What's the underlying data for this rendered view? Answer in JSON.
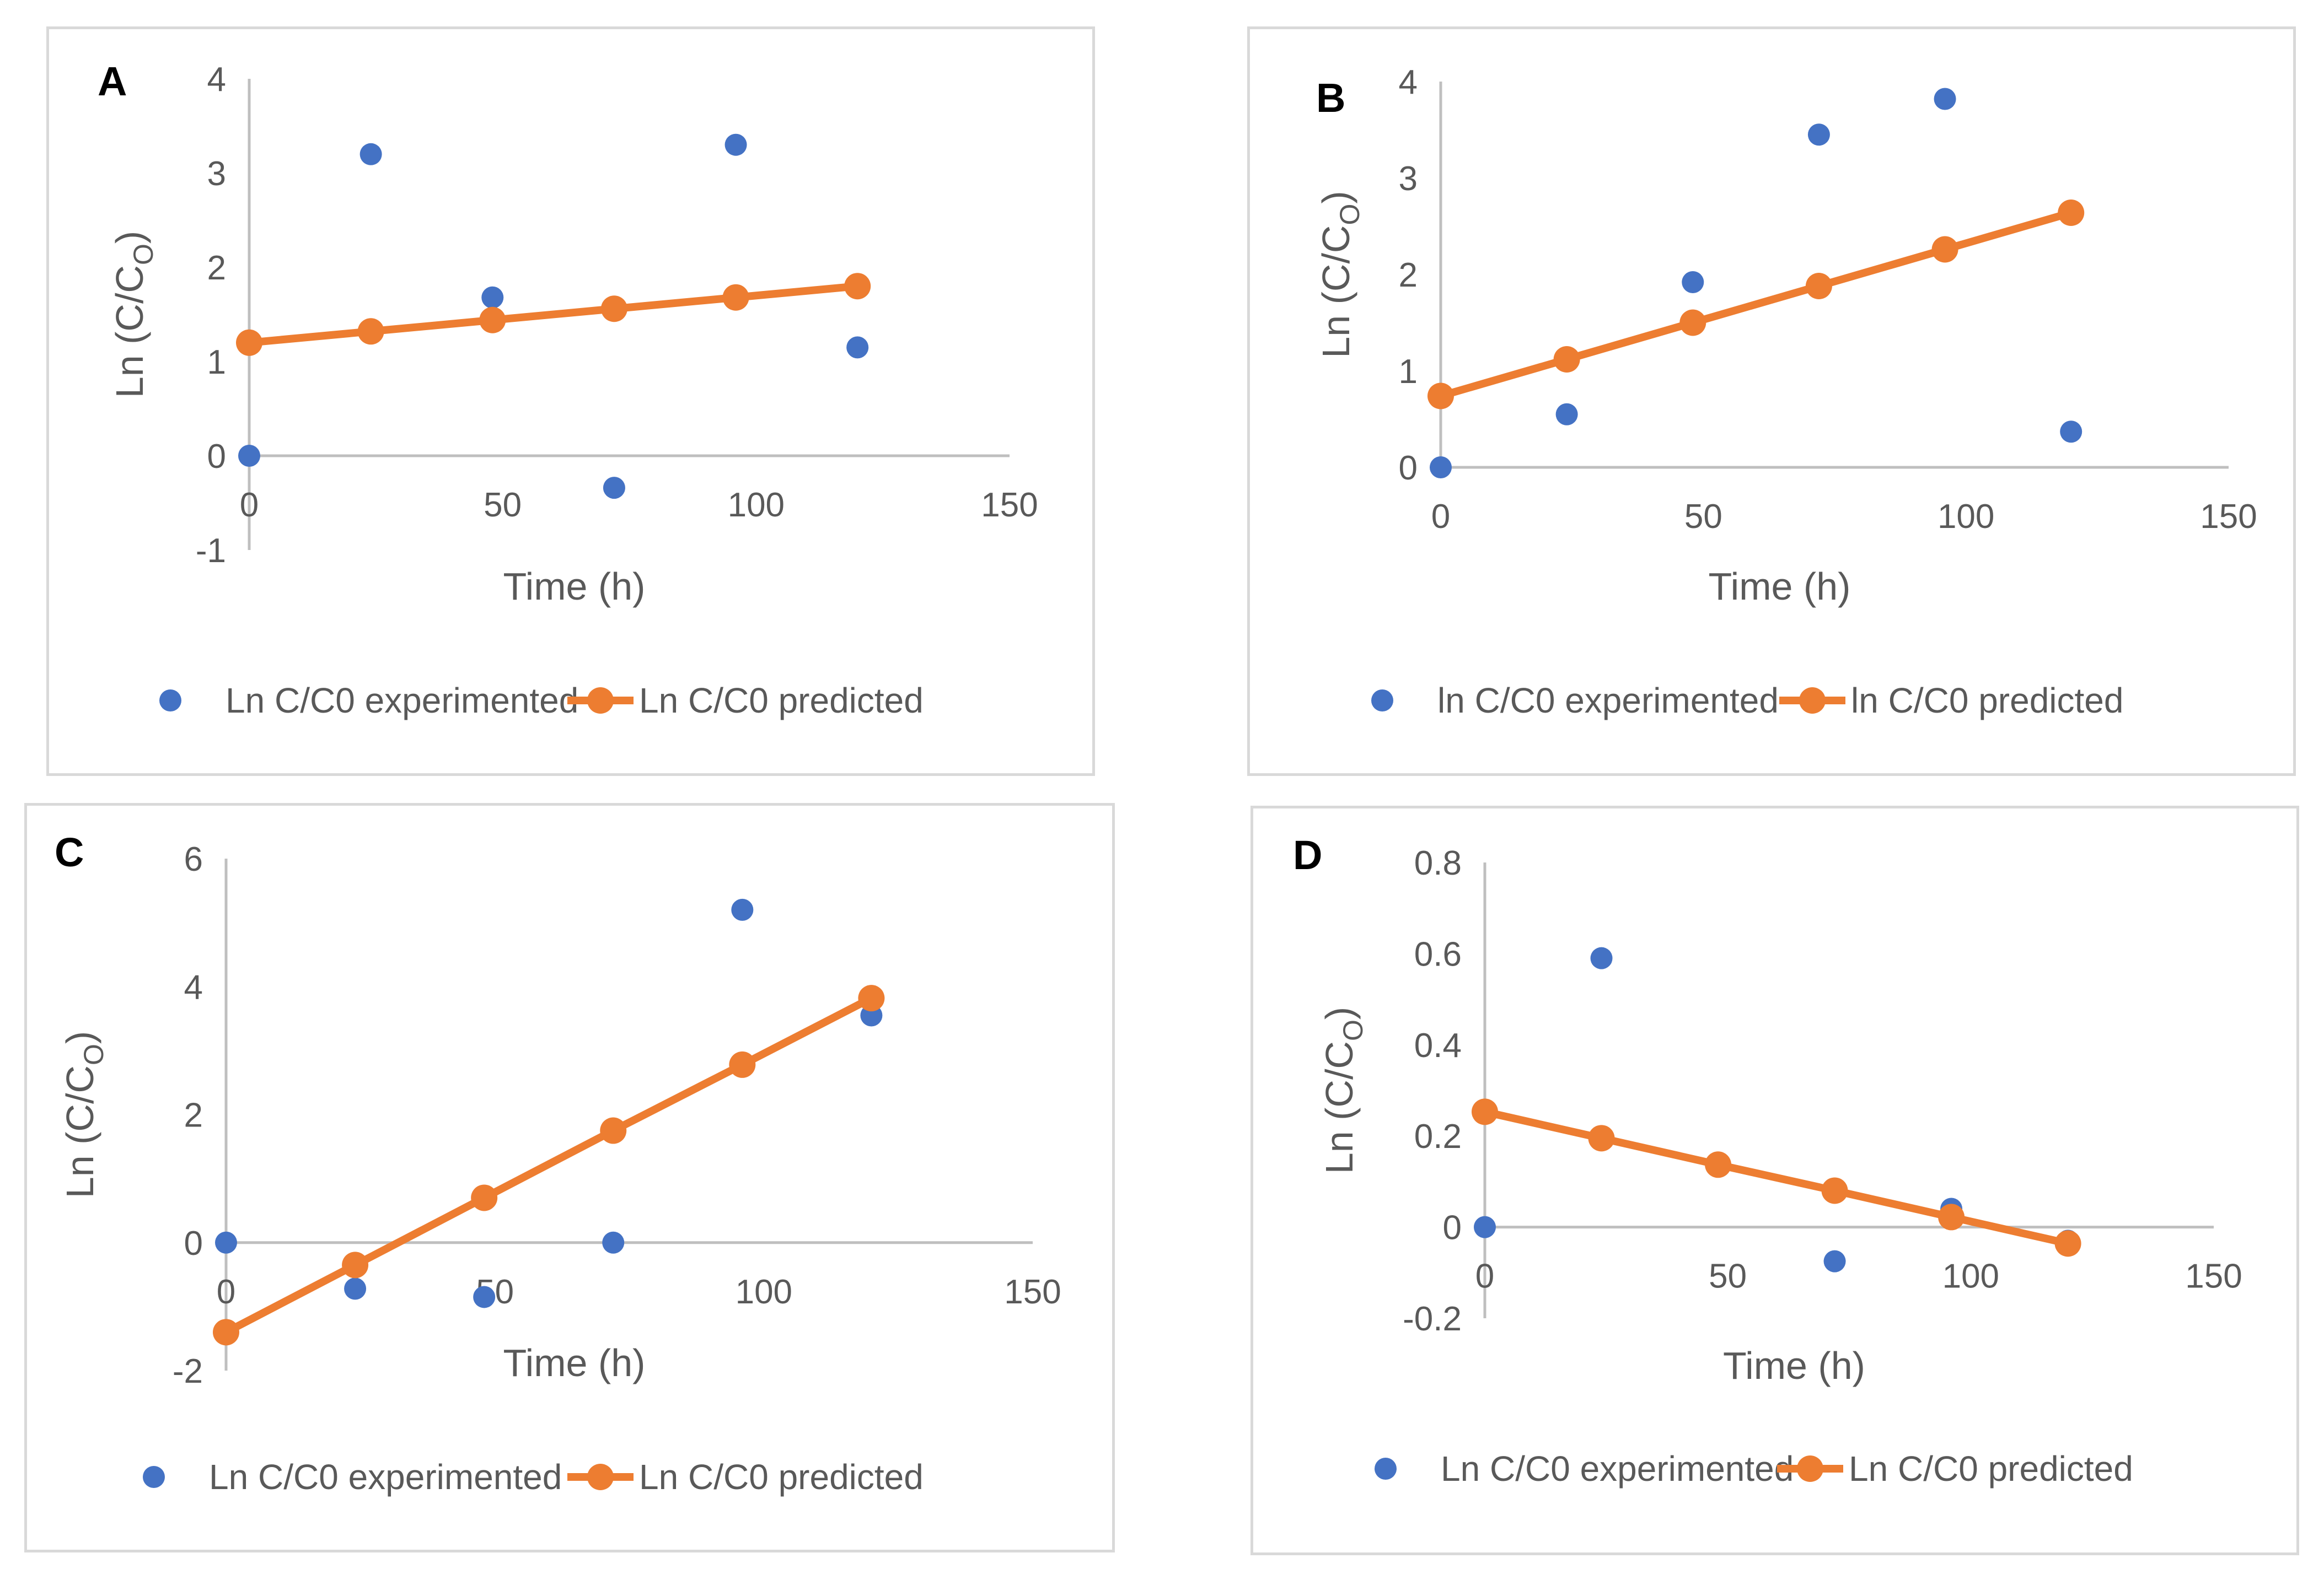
{
  "colors": {
    "experimented": "#4472c4",
    "predicted": "#ed7d31",
    "axis": "#bfbfbf",
    "text": "#595959",
    "border": "#d9d9d9"
  },
  "chart_data": [
    {
      "type": "scatter",
      "panel": "A",
      "xlabel": "Time (h)",
      "ylabel": "Ln (C/C",
      "ylabel_sub": "O",
      "ylabel_close": ")",
      "xlim": [
        0,
        150
      ],
      "ylim": [
        -1,
        4
      ],
      "xticks": [
        0,
        50,
        100,
        150
      ],
      "yticks": [
        -1,
        0,
        1,
        2,
        3,
        4
      ],
      "legend_position": "bottom",
      "series": [
        {
          "name": "Ln C/C0 experimented",
          "kind": "scatter",
          "x": [
            0,
            24,
            48,
            72,
            96,
            120
          ],
          "y": [
            0,
            3.2,
            1.68,
            -0.34,
            3.3,
            1.15
          ]
        },
        {
          "name": "Ln C/C0 predicted",
          "kind": "line-markers",
          "x": [
            0,
            24,
            48,
            72,
            96,
            120
          ],
          "y": [
            1.2,
            1.32,
            1.44,
            1.56,
            1.68,
            1.8
          ]
        }
      ]
    },
    {
      "type": "scatter",
      "panel": "B",
      "xlabel": "Time (h)",
      "ylabel": "Ln (C/C",
      "ylabel_sub": "O",
      "ylabel_close": ")",
      "xlim": [
        0,
        150
      ],
      "ylim": [
        0,
        4
      ],
      "xticks": [
        0,
        50,
        100,
        150
      ],
      "yticks": [
        0,
        1,
        2,
        3,
        4
      ],
      "legend_position": "bottom",
      "series": [
        {
          "name": "ln C/C0 experimented",
          "kind": "scatter",
          "x": [
            0,
            24,
            48,
            72,
            96,
            120
          ],
          "y": [
            0,
            0.55,
            1.92,
            3.45,
            3.82,
            0.37
          ]
        },
        {
          "name": "ln C/C0 predicted",
          "kind": "line-markers",
          "x": [
            0,
            24,
            48,
            72,
            96,
            120
          ],
          "y": [
            0.74,
            1.12,
            1.5,
            1.88,
            2.26,
            2.64
          ]
        }
      ]
    },
    {
      "type": "scatter",
      "panel": "C",
      "xlabel": "Time (h)",
      "ylabel": "Ln (C/C",
      "ylabel_sub": "O",
      "ylabel_close": ")",
      "xlim": [
        0,
        150
      ],
      "ylim": [
        -2,
        6
      ],
      "xticks": [
        0,
        50,
        100,
        150
      ],
      "yticks": [
        -2,
        0,
        2,
        4,
        6
      ],
      "legend_position": "bottom",
      "series": [
        {
          "name": "Ln C/C0 experimented",
          "kind": "scatter",
          "x": [
            0,
            24,
            48,
            72,
            96,
            120
          ],
          "y": [
            0,
            -0.72,
            -0.85,
            0,
            5.2,
            3.55
          ]
        },
        {
          "name": "Ln C/C0 predicted",
          "kind": "line-markers",
          "x": [
            0,
            24,
            48,
            72,
            96,
            120
          ],
          "y": [
            -1.4,
            -0.35,
            0.7,
            1.75,
            2.78,
            3.82
          ]
        }
      ]
    },
    {
      "type": "scatter",
      "panel": "D",
      "xlabel": "Time (h)",
      "ylabel": "Ln (C/C",
      "ylabel_sub": "O",
      "ylabel_close": ")",
      "xlim": [
        0,
        150
      ],
      "ylim": [
        -0.2,
        0.8
      ],
      "xticks": [
        0,
        50,
        100,
        150
      ],
      "yticks": [
        -0.2,
        0,
        0.2,
        0.4,
        0.6,
        0.8
      ],
      "ytick_labels": [
        "-0.2",
        "0",
        "0.2",
        "0.4",
        "0.6",
        "0.8"
      ],
      "legend_position": "bottom",
      "series": [
        {
          "name": "Ln C/C0 experimented",
          "kind": "scatter",
          "x": [
            0,
            24,
            48,
            72,
            96,
            120
          ],
          "y": [
            0,
            0.59,
            0.135,
            -0.075,
            0.04,
            -0.03
          ]
        },
        {
          "name": "Ln C/C0 predicted",
          "kind": "line-markers",
          "x": [
            0,
            24,
            48,
            72,
            96,
            120
          ],
          "y": [
            0.253,
            0.195,
            0.137,
            0.08,
            0.022,
            -0.036
          ]
        }
      ]
    }
  ]
}
